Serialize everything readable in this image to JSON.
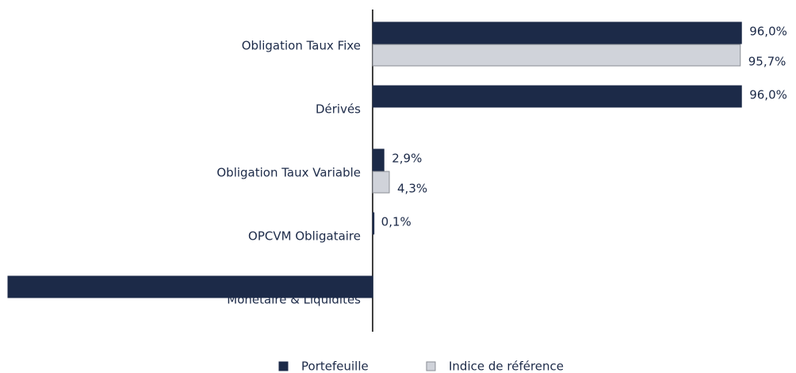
{
  "chart_data": {
    "type": "bar",
    "orientation": "horizontal",
    "categories": [
      "Obligation Taux Fixe",
      "Dérivés",
      "Obligation Taux Variable",
      "OPCVM Obligataire",
      "Monétaire & Liquidités"
    ],
    "series": [
      {
        "name": "Portefeuille",
        "color": "#1c2a48",
        "values": [
          96.0,
          96.0,
          2.9,
          0.1,
          -95
        ],
        "value_labels": [
          "96,0%",
          "96,0%",
          "2,9%",
          "0,1%",
          null
        ]
      },
      {
        "name": "Indice de référence",
        "color": "#d0d3da",
        "values": [
          95.7,
          null,
          4.3,
          null,
          null
        ],
        "value_labels": [
          "95,7%",
          null,
          "4,3%",
          null,
          null
        ]
      }
    ],
    "xlim": [
      -95,
      100
    ],
    "legend": "bottom"
  }
}
